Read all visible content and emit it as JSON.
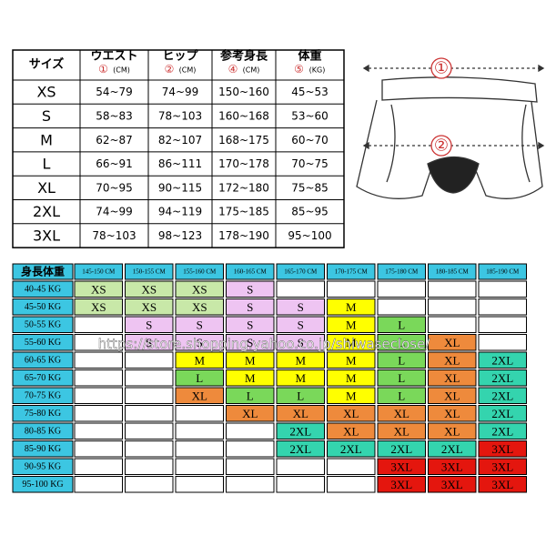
{
  "top_table": {
    "headers": [
      {
        "label": "サイズ"
      },
      {
        "label": "ウエスト",
        "mark": "①",
        "unit": "(CM)"
      },
      {
        "label": "ヒップ",
        "mark": "②",
        "unit": "(CM)"
      },
      {
        "label": "参考身長",
        "mark": "④",
        "unit": "(CM)"
      },
      {
        "label": "体重",
        "mark": "⑤",
        "unit": "(KG)"
      }
    ],
    "rows": [
      [
        "XS",
        "54~79",
        "74~99",
        "150~160",
        "45~53"
      ],
      [
        "S",
        "58~83",
        "78~103",
        "160~168",
        "53~60"
      ],
      [
        "M",
        "62~87",
        "82~107",
        "168~175",
        "60~70"
      ],
      [
        "L",
        "66~91",
        "86~111",
        "170~178",
        "70~75"
      ],
      [
        "XL",
        "70~95",
        "90~115",
        "172~180",
        "75~85"
      ],
      [
        "2XL",
        "74~99",
        "94~119",
        "175~185",
        "85~95"
      ],
      [
        "3XL",
        "78~103",
        "98~123",
        "178~190",
        "95~100"
      ]
    ]
  },
  "diagram": {
    "labels": [
      "①",
      "②"
    ]
  },
  "grid": {
    "corner": "身長体重",
    "columns": [
      "145-150 CM",
      "150-155 CM",
      "155-160 CM",
      "160-165 CM",
      "165-170 CM",
      "170-175 CM",
      "175-180 CM",
      "180-185 CM",
      "185-190 CM"
    ],
    "rows": [
      {
        "label": "40-45 KG",
        "cells": [
          "XS",
          "XS",
          "XS",
          "S",
          null,
          null,
          null,
          null,
          null
        ]
      },
      {
        "label": "45-50 KG",
        "cells": [
          "XS",
          "XS",
          "XS",
          "S",
          "S",
          "M",
          null,
          null,
          null
        ]
      },
      {
        "label": "50-55 KG",
        "cells": [
          null,
          "S",
          "S",
          "S",
          "S",
          "M",
          "L",
          null,
          null
        ]
      },
      {
        "label": "55-60 KG",
        "cells": [
          null,
          "S",
          "S",
          "S",
          "S",
          "M",
          "L",
          "XL",
          null
        ]
      },
      {
        "label": "60-65 KG",
        "cells": [
          null,
          null,
          "M",
          "M",
          "M",
          "M",
          "L",
          "XL",
          "2XL"
        ]
      },
      {
        "label": "65-70 KG",
        "cells": [
          null,
          null,
          "L",
          "M",
          "M",
          "M",
          "L",
          "XL",
          "2XL"
        ]
      },
      {
        "label": "70-75 KG",
        "cells": [
          null,
          null,
          "XL",
          "L",
          "L",
          "M",
          "L",
          "XL",
          "2XL"
        ]
      },
      {
        "label": "75-80 KG",
        "cells": [
          null,
          null,
          null,
          "XL",
          "XL",
          "XL",
          "XL",
          "XL",
          "2XL"
        ]
      },
      {
        "label": "80-85 KG",
        "cells": [
          null,
          null,
          null,
          null,
          "2XL",
          "XL",
          "XL",
          "XL",
          "2XL"
        ]
      },
      {
        "label": "85-90 KG",
        "cells": [
          null,
          null,
          null,
          null,
          "2XL",
          "2XL",
          "2XL",
          "2XL",
          "3XL"
        ]
      },
      {
        "label": "90-95 KG",
        "cells": [
          null,
          null,
          null,
          null,
          null,
          null,
          "3XL",
          "3XL",
          "3XL"
        ]
      },
      {
        "label": "95-100 KG",
        "cells": [
          null,
          null,
          null,
          null,
          null,
          null,
          "3XL",
          "3XL",
          "3XL"
        ]
      }
    ],
    "size_colors": {
      "XS": "#c8e8a8",
      "S": "#eec4f2",
      "M": "#ffff00",
      "L": "#7ad85a",
      "XL": "#ee8a3c",
      "2XL": "#34d4ae",
      "3XL": "#e4160e"
    },
    "label_color": "#3cc6e2"
  },
  "watermark": "https://store.shopping.yahoo.co.jp/shiwaseclose/"
}
